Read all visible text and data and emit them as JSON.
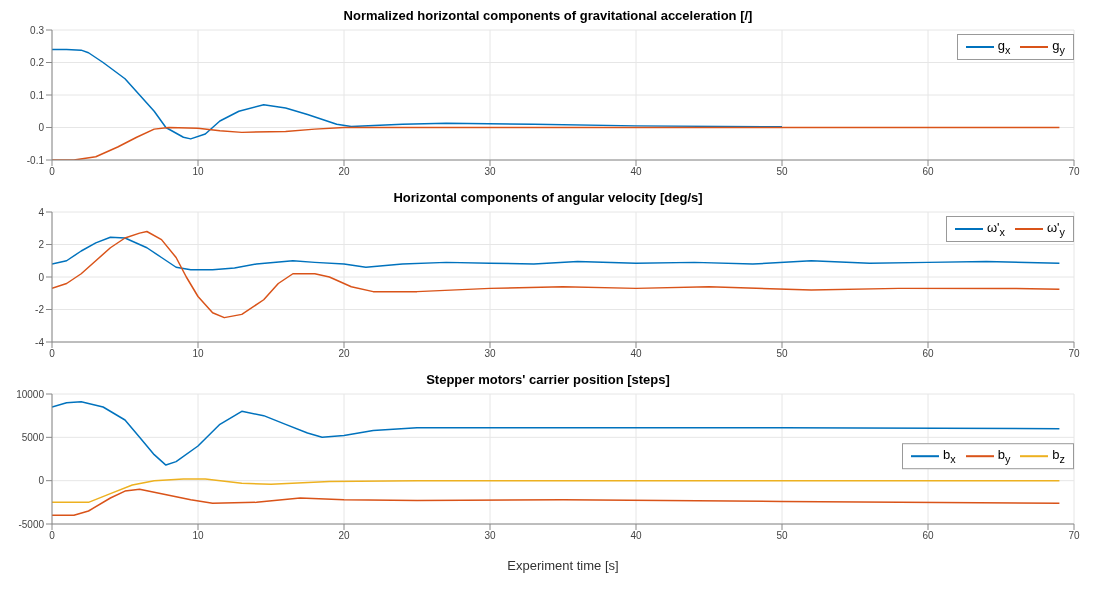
{
  "chart_data": [
    {
      "type": "line",
      "title": "Normalized horizontal components of gravitational acceleration [/]",
      "xlim": [
        0,
        70
      ],
      "xticks": [
        0,
        10,
        20,
        30,
        40,
        50,
        60,
        70
      ],
      "ylim": [
        -0.1,
        0.3
      ],
      "yticks": [
        -0.1,
        0,
        0.1,
        0.2,
        0.3
      ],
      "grid": true,
      "legend": "top right",
      "series": [
        {
          "name": "g$_{x}$",
          "color": "#0072bd",
          "x": [
            0,
            1,
            2,
            2.5,
            3.5,
            5,
            6,
            7,
            7.8,
            9,
            9.5,
            10.5,
            11.5,
            12.8,
            14.5,
            16,
            17.5,
            19.5,
            20.5,
            24,
            27,
            33,
            40,
            50
          ],
          "values": [
            0.24,
            0.24,
            0.238,
            0.23,
            0.2,
            0.15,
            0.1,
            0.05,
            0,
            -0.03,
            -0.035,
            -0.02,
            0.02,
            0.05,
            0.07,
            0.06,
            0.04,
            0.01,
            0.003,
            0.01,
            0.013,
            0.01,
            0.005,
            0.002
          ]
        },
        {
          "name": "g$_{y}$",
          "color": "#d95319",
          "x": [
            0,
            1.5,
            3,
            4.5,
            5.8,
            7,
            8,
            10,
            11.5,
            13,
            16,
            18,
            20,
            30,
            50,
            69
          ],
          "values": [
            -0.1,
            -0.1,
            -0.09,
            -0.06,
            -0.03,
            -0.005,
            0,
            -0.002,
            -0.01,
            -0.015,
            -0.012,
            -0.005,
            0,
            0,
            0,
            0
          ]
        }
      ]
    },
    {
      "type": "line",
      "title": "Horizontal components of angular velocity [deg/s]",
      "xlim": [
        0,
        70
      ],
      "xticks": [
        0,
        10,
        20,
        30,
        40,
        50,
        60,
        70
      ],
      "ylim": [
        -4,
        4
      ],
      "yticks": [
        -4,
        -2,
        0,
        2,
        4
      ],
      "grid": true,
      "legend": "top right",
      "series": [
        {
          "name": "ω'$_{x}$",
          "color": "#0072bd",
          "x": [
            0,
            1,
            2,
            3,
            4,
            5,
            6.5,
            7.5,
            8.5,
            9.5,
            11,
            12.5,
            14,
            16.5,
            18,
            20,
            21.5,
            24,
            27,
            30,
            33,
            36,
            40,
            44,
            48,
            52,
            56,
            60,
            64,
            69
          ],
          "values": [
            0.8,
            1.0,
            1.6,
            2.1,
            2.45,
            2.4,
            1.8,
            1.2,
            0.6,
            0.45,
            0.45,
            0.55,
            0.8,
            1.0,
            0.9,
            0.8,
            0.6,
            0.8,
            0.9,
            0.85,
            0.8,
            0.95,
            0.85,
            0.9,
            0.8,
            1.0,
            0.85,
            0.9,
            0.95,
            0.85
          ]
        },
        {
          "name": "ω'$_{y}$",
          "color": "#d95319",
          "x": [
            0,
            1,
            2,
            3,
            4,
            5,
            6,
            6.5,
            7.5,
            8.5,
            9.2,
            10,
            11,
            11.8,
            13,
            14.5,
            15.5,
            16.5,
            18,
            19,
            20.5,
            22,
            25,
            30,
            35,
            40,
            45,
            52,
            58,
            65,
            69
          ],
          "values": [
            -0.7,
            -0.4,
            0.2,
            1,
            1.8,
            2.4,
            2.7,
            2.8,
            2.3,
            1.2,
            0,
            -1.2,
            -2.2,
            -2.5,
            -2.3,
            -1.4,
            -0.4,
            0.2,
            0.2,
            0,
            -0.6,
            -0.9,
            -0.9,
            -0.7,
            -0.6,
            -0.7,
            -0.6,
            -0.8,
            -0.7,
            -0.7,
            -0.75
          ]
        }
      ]
    },
    {
      "type": "line",
      "title": "Stepper motors' carrier position [steps]",
      "xlabel": "Experiment time [s]",
      "xlim": [
        0,
        70
      ],
      "xticks": [
        0,
        10,
        20,
        30,
        40,
        50,
        60,
        70
      ],
      "ylim": [
        -5000,
        10000
      ],
      "yticks": [
        -5000,
        0,
        5000,
        10000
      ],
      "grid": true,
      "legend": "right",
      "series": [
        {
          "name": "b$_{x}$",
          "color": "#0072bd",
          "x": [
            0,
            1,
            2,
            3.5,
            5,
            6,
            7,
            7.8,
            8.5,
            10,
            11.5,
            13,
            14.5,
            16,
            17.5,
            18.5,
            20,
            22,
            25,
            35,
            50,
            69
          ],
          "values": [
            8500,
            9000,
            9100,
            8500,
            7000,
            5000,
            3000,
            1800,
            2200,
            4000,
            6500,
            8000,
            7500,
            6500,
            5500,
            5000,
            5200,
            5800,
            6100,
            6100,
            6100,
            6000
          ]
        },
        {
          "name": "b$_{y}$",
          "color": "#d95319",
          "x": [
            0,
            1.5,
            2.5,
            4,
            5,
            6,
            7.5,
            9.5,
            11,
            14,
            17,
            20,
            25,
            35,
            50,
            69
          ],
          "values": [
            -4000,
            -4000,
            -3500,
            -2000,
            -1200,
            -1000,
            -1500,
            -2200,
            -2600,
            -2500,
            -2000,
            -2200,
            -2300,
            -2200,
            -2400,
            -2600
          ]
        },
        {
          "name": "b$_{z}$",
          "color": "#edb120",
          "x": [
            0,
            2.5,
            4,
            5.5,
            7,
            9,
            10.5,
            13,
            15,
            19,
            25,
            69
          ],
          "values": [
            -2500,
            -2500,
            -1500,
            -500,
            0,
            200,
            200,
            -300,
            -400,
            -100,
            0,
            0
          ]
        }
      ]
    }
  ]
}
